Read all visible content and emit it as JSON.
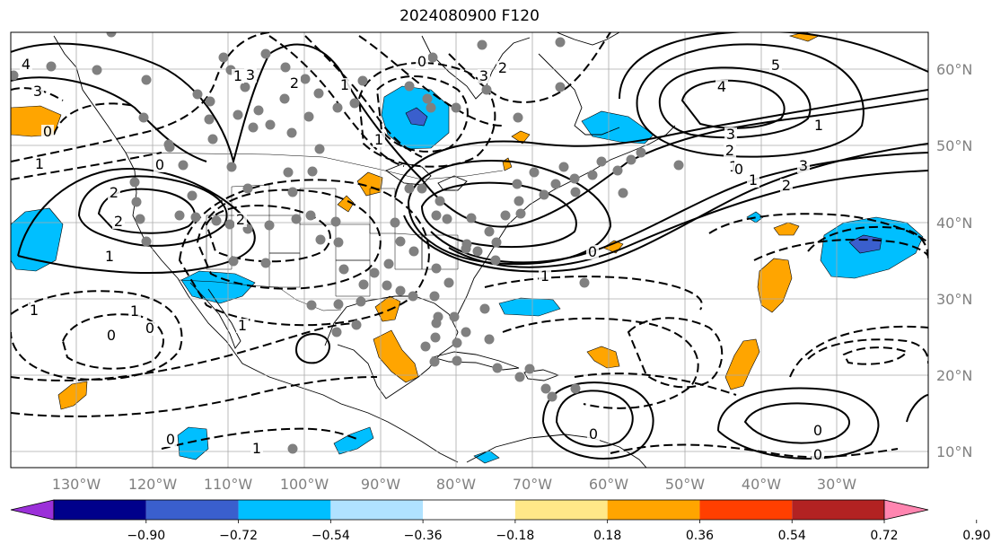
{
  "title": "2024080900 F120",
  "lon_labels": [
    "130°W",
    "120°W",
    "110°W",
    "100°W",
    "90°W",
    "80°W",
    "70°W",
    "60°W",
    "50°W",
    "40°W",
    "30°W"
  ],
  "lat_labels": [
    "60°N",
    "50°N",
    "40°N",
    "30°N",
    "20°N",
    "10°N"
  ],
  "colorbar": {
    "ticks": [
      "−0.90",
      "−0.72",
      "−0.54",
      "−0.36",
      "−0.18",
      "0.18",
      "0.36",
      "0.54",
      "0.72",
      "0.90"
    ],
    "colors": [
      "#9b30d9",
      "#00008b",
      "#3a5fcd",
      "#00bfff",
      "#b0e2ff",
      "#ffffff",
      "#ffe888",
      "#ffa500",
      "#ff3f00",
      "#b22222",
      "#ff85b0"
    ]
  },
  "contour_labels": [
    "4",
    "3",
    "0",
    "1",
    "2",
    "0",
    "2",
    "1",
    "2",
    "1",
    "3",
    "2",
    "1",
    "0",
    "3",
    "2",
    "1",
    "5",
    "4",
    "3",
    "2",
    "1",
    "0",
    "1",
    "2",
    "3",
    "1",
    "0",
    "1",
    "1",
    "0",
    "0",
    "1",
    "0",
    "1",
    "1",
    "0",
    "0",
    "0"
  ],
  "marker_color": "#808080",
  "positive_fill": "#ffa500",
  "negative_fill": "#00bfff",
  "strong_negative_fill": "#3a5fcd"
}
